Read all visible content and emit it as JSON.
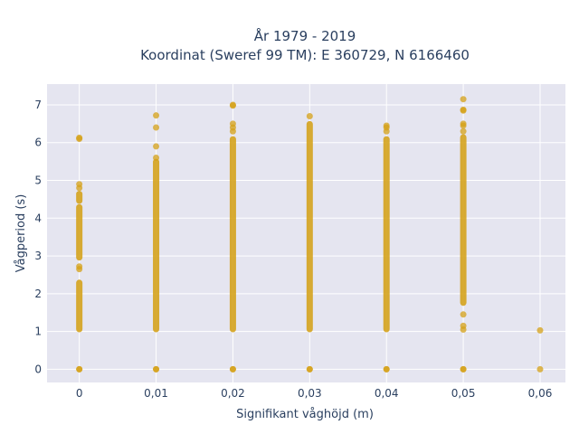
{
  "chart_data": {
    "type": "scatter",
    "title_line1": "År 1979 - 2019",
    "title_line2": "Koordinat (Sweref 99 TM): E 360729, N 6166460",
    "xlabel": "Signifikant våghöjd (m)",
    "ylabel": "Vågperiod (s)",
    "x_ticks": [
      0,
      0.01,
      0.02,
      0.03,
      0.04,
      0.05,
      0.06
    ],
    "x_tick_labels": [
      "0",
      "0,01",
      "0,02",
      "0,03",
      "0,04",
      "0,05",
      "0,06"
    ],
    "y_ticks": [
      0,
      1,
      2,
      3,
      4,
      5,
      6,
      7
    ],
    "y_tick_labels": [
      "0",
      "1",
      "2",
      "3",
      "4",
      "5",
      "6",
      "7"
    ],
    "xlim": [
      -0.0042,
      0.0633
    ],
    "ylim": [
      -0.35,
      7.55
    ],
    "grid": true,
    "colors": {
      "marker": "#d4a017",
      "plot_bg": "#e5e5f0",
      "grid": "#ffffff",
      "text": "#2a3f5f"
    },
    "series": [
      {
        "x": 0,
        "bands": [
          [
            1.05,
            2.3
          ],
          [
            2.95,
            4.3
          ],
          [
            4.45,
            4.65
          ]
        ],
        "points": [
          0,
          0,
          2.65,
          2.72,
          4.8,
          4.9,
          6.1,
          6.13
        ]
      },
      {
        "x": 0.01,
        "bands": [
          [
            1.05,
            5.5
          ]
        ],
        "points": [
          0,
          0,
          5.6,
          5.9,
          6.4,
          6.72
        ]
      },
      {
        "x": 0.02,
        "bands": [
          [
            1.05,
            6.1
          ]
        ],
        "points": [
          0,
          0,
          6.3,
          6.4,
          6.5,
          6.98,
          7.0
        ]
      },
      {
        "x": 0.03,
        "bands": [
          [
            1.05,
            6.5
          ]
        ],
        "points": [
          0,
          0,
          6.7
        ]
      },
      {
        "x": 0.04,
        "bands": [
          [
            1.05,
            6.1
          ]
        ],
        "points": [
          0,
          0,
          6.3,
          6.4,
          6.45
        ]
      },
      {
        "x": 0.05,
        "bands": [
          [
            1.75,
            6.15
          ]
        ],
        "points": [
          0,
          0,
          1.05,
          1.15,
          1.45,
          6.3,
          6.45,
          6.5,
          6.85,
          6.87,
          7.15
        ]
      },
      {
        "x": 0.06,
        "bands": [],
        "points": [
          0,
          1.03
        ]
      }
    ]
  }
}
